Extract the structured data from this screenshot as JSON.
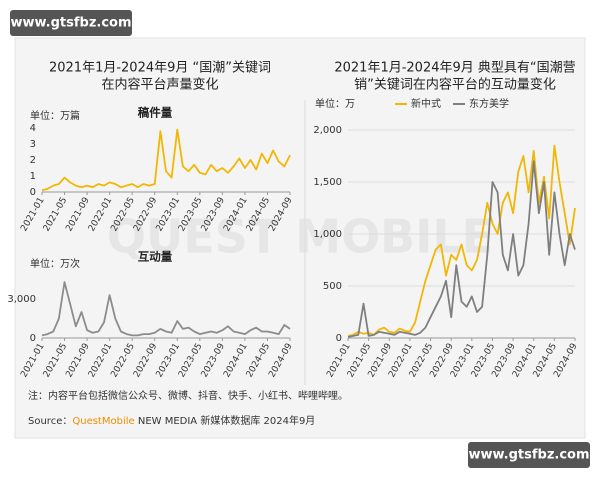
{
  "watermarks": [
    "www.gtsfbz.com",
    "www.gtsfbz.com"
  ],
  "background_watermark": "QUEST MOBILE",
  "left_panel_title": [
    "2021年1月-2024年9月 “国潮”关键词",
    "在内容平台声量变化"
  ],
  "right_panel_title": [
    "2021年1月-2024年9月 典型具有“国潮营",
    "销”关键词在内容平台的互动量变化"
  ],
  "footer": {
    "note": "注：内容平台包括微信公众号、微博、抖音、快手、小红书、哔哩哔哩。",
    "source_prefix": "Source：",
    "source_brand": "QuestMobile",
    "source_rest": " NEW MEDIA 新媒体数据库 2024年9月"
  },
  "chart_data": [
    {
      "type": "line",
      "title": "稿件量",
      "unit": "单位：万篇",
      "categories": [
        "2021-01",
        null,
        null,
        null,
        "2021-05",
        null,
        null,
        null,
        "2021-09",
        null,
        null,
        null,
        "2022-01",
        null,
        null,
        null,
        "2022-05",
        null,
        null,
        null,
        "2022-09",
        null,
        null,
        null,
        "2023-01",
        null,
        null,
        null,
        "2023-05",
        null,
        null,
        null,
        "2023-09",
        null,
        null,
        null,
        "2024-01",
        null,
        null,
        null,
        "2024-05",
        null,
        null,
        null,
        "2024-09"
      ],
      "series": [
        {
          "name": null,
          "color": "#f2b705",
          "values": [
            0.1,
            0.2,
            0.4,
            0.5,
            0.9,
            0.6,
            0.4,
            0.3,
            0.4,
            0.3,
            0.5,
            0.4,
            0.6,
            0.5,
            0.3,
            0.4,
            0.5,
            0.3,
            0.5,
            0.4,
            0.5,
            3.8,
            1.3,
            0.9,
            3.9,
            1.6,
            1.3,
            1.7,
            1.2,
            1.1,
            1.7,
            1.3,
            1.5,
            1.2,
            1.6,
            2.1,
            1.5,
            2.0,
            1.4,
            2.4,
            1.8,
            2.6,
            1.9,
            1.6,
            2.3
          ]
        }
      ],
      "ylim": [
        0,
        4
      ],
      "yticks": [
        0,
        1,
        2,
        3,
        4
      ],
      "grid": false
    },
    {
      "type": "line",
      "title": "互动量",
      "unit": "单位：万次",
      "categories": [
        "2021-01",
        null,
        null,
        null,
        "2021-05",
        null,
        null,
        null,
        "2021-09",
        null,
        null,
        null,
        "2022-01",
        null,
        null,
        null,
        "2022-05",
        null,
        null,
        null,
        "2022-09",
        null,
        null,
        null,
        "2023-01",
        null,
        null,
        null,
        "2023-05",
        null,
        null,
        null,
        "2023-09",
        null,
        null,
        null,
        "2024-01",
        null,
        null,
        null,
        "2024-05",
        null,
        null,
        null,
        "2024-09"
      ],
      "series": [
        {
          "name": null,
          "color": "#8c8c8c",
          "values": [
            200,
            300,
            500,
            1500,
            4300,
            2600,
            900,
            2000,
            600,
            400,
            500,
            1200,
            3300,
            1500,
            500,
            300,
            200,
            200,
            300,
            300,
            400,
            700,
            500,
            400,
            1300,
            700,
            800,
            500,
            300,
            400,
            500,
            400,
            600,
            900,
            500,
            400,
            300,
            600,
            800,
            500,
            500,
            400,
            300,
            1000,
            700
          ]
        }
      ],
      "ylim": [
        0,
        5000
      ],
      "yticks": [
        0,
        {
          "value": 3000,
          "label": "3,000"
        }
      ],
      "grid": false
    },
    {
      "type": "line",
      "title": null,
      "unit": "单位：万",
      "categories": [
        "2021-01",
        null,
        null,
        null,
        "2021-05",
        null,
        null,
        null,
        "2021-09",
        null,
        null,
        null,
        "2022-01",
        null,
        null,
        null,
        "2022-05",
        null,
        null,
        null,
        "2022-09",
        null,
        null,
        null,
        "2023-01",
        null,
        null,
        null,
        "2023-05",
        null,
        null,
        null,
        "2023-09",
        null,
        null,
        null,
        "2024-01",
        null,
        null,
        null,
        "2024-05",
        null,
        null,
        null,
        "2024-09"
      ],
      "series": [
        {
          "name": "新中式",
          "color": "#f2b705",
          "values": [
            20,
            30,
            60,
            40,
            50,
            30,
            80,
            100,
            60,
            50,
            90,
            70,
            60,
            150,
            350,
            550,
            700,
            850,
            900,
            600,
            800,
            750,
            900,
            700,
            650,
            750,
            1000,
            1300,
            1100,
            1000,
            1300,
            1400,
            1200,
            1600,
            1750,
            1400,
            1800,
            1300,
            1550,
            1150,
            1850,
            1500,
            1200,
            900,
            1250
          ]
        },
        {
          "name": "东方美学",
          "color": "#7f7f7f",
          "values": [
            10,
            20,
            30,
            330,
            20,
            30,
            60,
            50,
            40,
            30,
            60,
            50,
            40,
            30,
            50,
            100,
            200,
            300,
            400,
            550,
            200,
            700,
            350,
            300,
            400,
            250,
            300,
            800,
            1500,
            1400,
            800,
            650,
            1000,
            600,
            700,
            1100,
            1700,
            1200,
            1500,
            800,
            1400,
            1000,
            700,
            1000,
            850
          ]
        }
      ],
      "ylim": [
        0,
        2000
      ],
      "yticks": [
        0,
        500,
        {
          "value": 1000,
          "label": "1,000"
        },
        {
          "value": 1500,
          "label": "1,500"
        },
        {
          "value": 2000,
          "label": "2,000"
        }
      ],
      "grid": true,
      "legend": "top"
    }
  ]
}
